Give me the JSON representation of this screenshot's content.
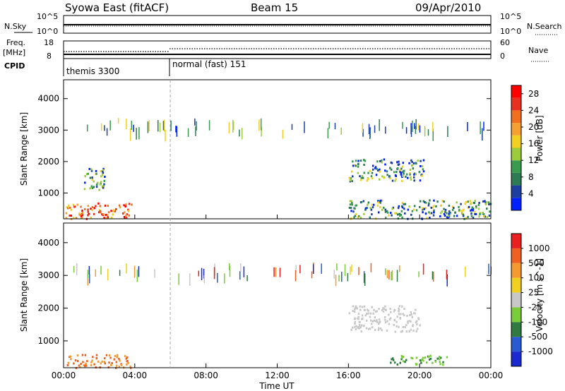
{
  "header": {
    "station": "Syowa East (fitACF)",
    "beam": "Beam 15",
    "date": "09/Apr/2010"
  },
  "params_panel": {
    "nsky_label": "N.Sky",
    "freq_label_1": "Freq.",
    "freq_label_2": "[MHz]",
    "cpid_label": "CPID",
    "nsky_ticks": [
      "10^5",
      "10^0"
    ],
    "freq_ticks": [
      "18",
      "8"
    ],
    "nsearch_ticks": [
      "10^5",
      "10^0"
    ],
    "nave_ticks": [
      "60",
      "0"
    ],
    "nsearch_label": "N.Search",
    "nave_label": "Nave",
    "cpid_segments": [
      {
        "start_hour": 0,
        "label": "themis 3300"
      },
      {
        "start_hour": 6,
        "label": "normal (fast) 151"
      }
    ]
  },
  "chart_data": [
    {
      "type": "heatmap",
      "title": "",
      "quantity": "Power",
      "xlabel": "",
      "ylabel": "Slant Range [km]",
      "colorbar_label": "Power [dB]",
      "x_ticks": [
        "00:00",
        "04:00",
        "08:00",
        "12:00",
        "16:00",
        "20:00",
        "00:00"
      ],
      "x_range_hours": [
        0,
        24
      ],
      "y_ticks": [
        1000,
        2000,
        3000,
        4000
      ],
      "y_range_km": [
        180,
        4600
      ],
      "colorbar_ticks": [
        4,
        8,
        12,
        16,
        20,
        24,
        28
      ],
      "colorbar_range": [
        0,
        30
      ],
      "colors": [
        "#0020ff",
        "#1e3fa0",
        "#2e7a52",
        "#3a9a4e",
        "#9ccc3c",
        "#f0d020",
        "#f5a030",
        "#f07020",
        "#e83020",
        "#ff0000"
      ],
      "regions": [
        {
          "hours": [
            0.1,
            3.8
          ],
          "km": [
            200,
            700
          ],
          "level": "mixed-high"
        },
        {
          "hours": [
            1.0,
            2.3
          ],
          "km": [
            1100,
            1800
          ],
          "level": "mixed"
        },
        {
          "hours": [
            16.0,
            20.2
          ],
          "km": [
            1400,
            2100
          ],
          "level": "mixed"
        },
        {
          "hours": [
            16.0,
            24.0
          ],
          "km": [
            200,
            800
          ],
          "level": "mixed"
        },
        {
          "hours": [
            0.5,
            24.0
          ],
          "km": [
            3000,
            3400
          ],
          "level": "sparse"
        }
      ]
    },
    {
      "type": "heatmap",
      "title": "",
      "quantity": "Velocity",
      "xlabel": "Time UT",
      "ylabel": "Slant Range [km]",
      "colorbar_label": "Velocity [m s^-1]",
      "x_ticks": [
        "00:00",
        "04:00",
        "08:00",
        "12:00",
        "16:00",
        "20:00",
        "00:00"
      ],
      "x_range_hours": [
        0,
        24
      ],
      "y_ticks": [
        1000,
        2000,
        3000,
        4000
      ],
      "y_range_km": [
        180,
        4600
      ],
      "colorbar_ticks": [
        "1000",
        "500",
        "100",
        "25",
        "-25",
        "-100",
        "-500",
        "-1000"
      ],
      "colors": [
        "#1a2ad0",
        "#2a5ad0",
        "#2e7a40",
        "#7acc3a",
        "#c8c8c8",
        "#f0d020",
        "#f59a30",
        "#f06020",
        "#e82020"
      ],
      "regions": [
        {
          "hours": [
            0.1,
            3.8
          ],
          "km": [
            200,
            600
          ],
          "level": "orange"
        },
        {
          "hours": [
            16.0,
            20.0
          ],
          "km": [
            1300,
            2100
          ],
          "level": "gray"
        },
        {
          "hours": [
            18.3,
            21.5
          ],
          "km": [
            300,
            600
          ],
          "level": "green"
        },
        {
          "hours": [
            0.5,
            24.0
          ],
          "km": [
            3000,
            3400
          ],
          "level": "sparse"
        }
      ]
    }
  ]
}
